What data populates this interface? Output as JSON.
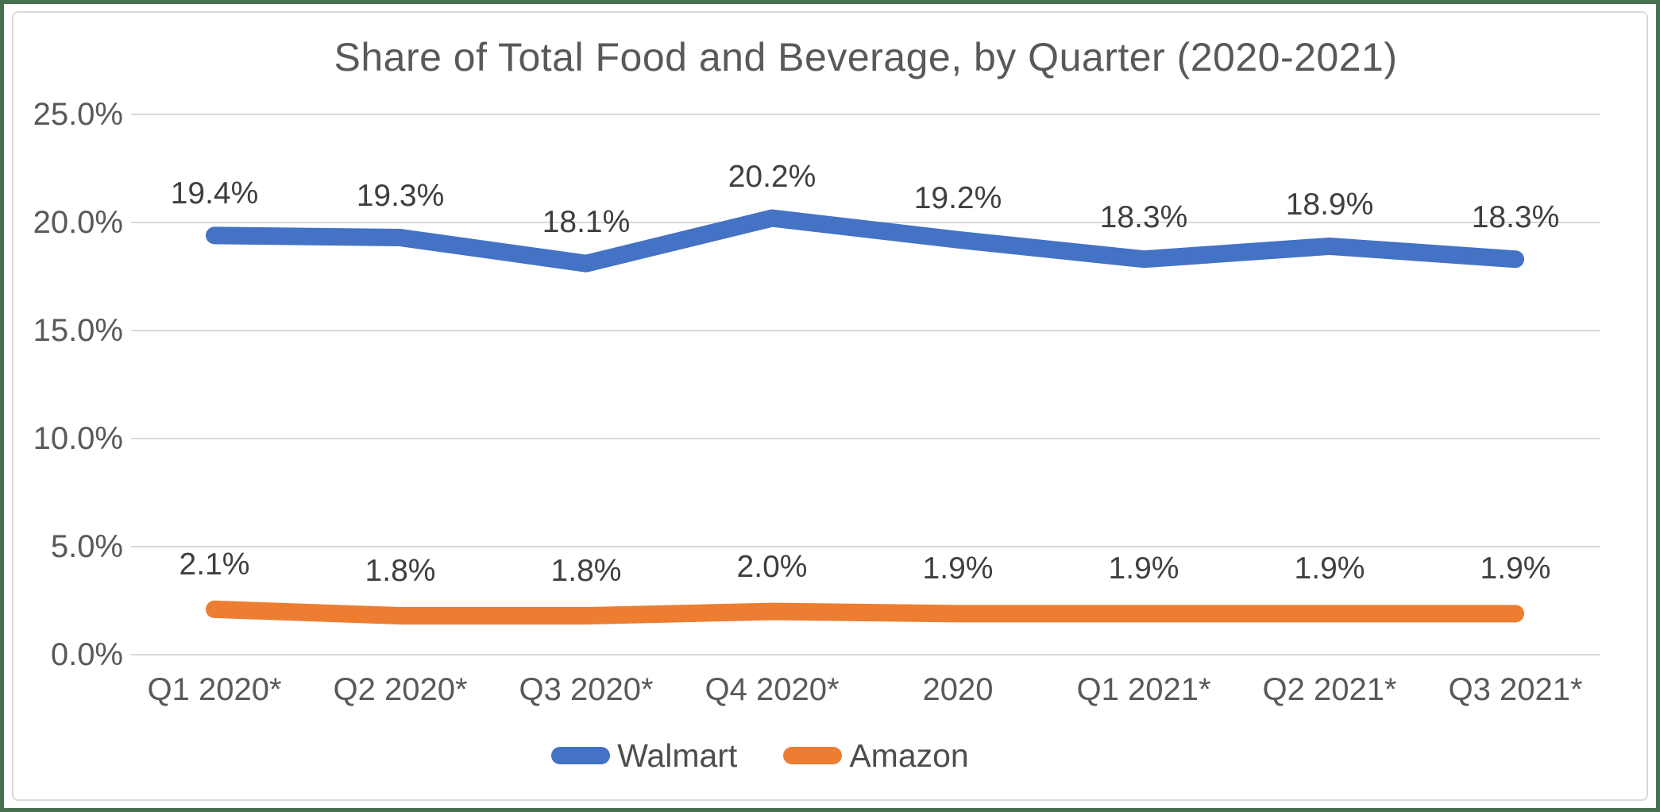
{
  "frame": {
    "outer_border_color": "#46714F",
    "chart_border_color": "#D9D9D9",
    "background_color": "#FFFFFF"
  },
  "chart_data": {
    "type": "line",
    "title": "Share of Total Food and Beverage, by Quarter (2020-2021)",
    "categories": [
      "Q1 2020*",
      "Q2 2020*",
      "Q3 2020*",
      "Q4 2020*",
      "2020",
      "Q1 2021*",
      "Q2 2021*",
      "Q3 2021*"
    ],
    "series": [
      {
        "name": "Walmart",
        "color": "#4472C4",
        "values": [
          19.4,
          19.3,
          18.1,
          20.2,
          19.2,
          18.3,
          18.9,
          18.3
        ],
        "labels": [
          "19.4%",
          "19.3%",
          "18.1%",
          "20.2%",
          "19.2%",
          "18.3%",
          "18.9%",
          "18.3%"
        ]
      },
      {
        "name": "Amazon",
        "color": "#ED7D31",
        "values": [
          2.1,
          1.8,
          1.8,
          2.0,
          1.9,
          1.9,
          1.9,
          1.9
        ],
        "labels": [
          "2.1%",
          "1.8%",
          "1.8%",
          "2.0%",
          "1.9%",
          "1.9%",
          "1.9%",
          "1.9%"
        ]
      }
    ],
    "y_ticks": [
      {
        "label": "25.0%",
        "value": 25
      },
      {
        "label": "20.0%",
        "value": 20
      },
      {
        "label": "15.0%",
        "value": 15
      },
      {
        "label": "10.0%",
        "value": 10
      },
      {
        "label": "5.0%",
        "value": 5
      },
      {
        "label": "0.0%",
        "value": 0
      }
    ],
    "ylim": [
      0,
      25
    ],
    "xlabel": "",
    "ylabel": "",
    "grid": "horizontal",
    "gridline_color": "#D9D9D9",
    "axis_text_color": "#595959",
    "data_label_color": "#3F3F3F",
    "legend_position": "bottom"
  }
}
